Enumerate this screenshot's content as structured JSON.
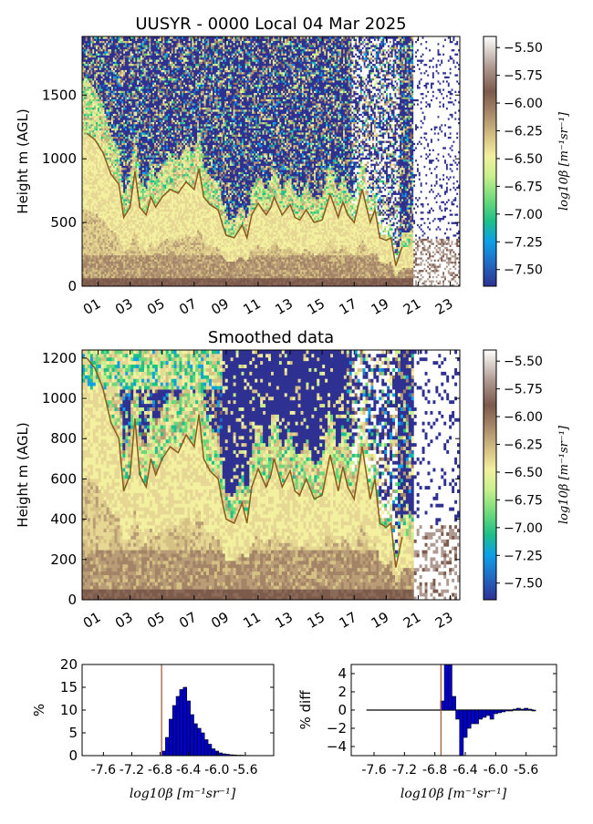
{
  "chart_data": [
    {
      "type": "heatmap",
      "title": "UUSYR - 0000 Local 04 Mar 2025",
      "xlabel": "",
      "ylabel": "Height m (AGL)",
      "xlim": [
        0,
        23.6
      ],
      "ylim": [
        0,
        1960
      ],
      "x_ticks": [
        "01",
        "03",
        "05",
        "07",
        "09",
        "11",
        "13",
        "15",
        "17",
        "19",
        "21",
        "23"
      ],
      "x_tick_values": [
        1,
        3,
        5,
        7,
        9,
        11,
        13,
        15,
        17,
        19,
        21,
        23
      ],
      "y_ticks": [
        0,
        500,
        1000,
        1500
      ],
      "colorbar": {
        "label": "log10β [m⁻¹sr⁻¹]",
        "ticks": [
          "-5.50",
          "-5.75",
          "-6.00",
          "-6.25",
          "-6.50",
          "-6.75",
          "-7.00",
          "-7.25",
          "-7.50"
        ],
        "range": [
          -7.65,
          -5.4
        ]
      },
      "line_series": {
        "name": "",
        "color": "#8b5a1e",
        "x": [
          0.3,
          0.8,
          1.3,
          1.8,
          2.3,
          2.6,
          3.0,
          3.3,
          3.6,
          4.0,
          4.3,
          4.6,
          5.0,
          5.5,
          6.0,
          6.5,
          7.0,
          7.3,
          7.6,
          8.0,
          8.5,
          8.8,
          9.0,
          9.5,
          10.0,
          10.3,
          10.6,
          11.0,
          11.5,
          11.8,
          12.0,
          12.5,
          13.0,
          13.3,
          13.6,
          14.0,
          14.5,
          15.0,
          15.5,
          16.0,
          16.3,
          16.6,
          17.0,
          17.5,
          18.0,
          18.3,
          18.6,
          19.0,
          19.3,
          19.6,
          20.0
        ],
        "y": [
          1200,
          1150,
          1050,
          880,
          800,
          540,
          620,
          900,
          620,
          560,
          700,
          620,
          700,
          760,
          730,
          820,
          760,
          920,
          700,
          640,
          600,
          470,
          400,
          380,
          480,
          380,
          560,
          650,
          560,
          620,
          700,
          560,
          640,
          540,
          520,
          600,
          500,
          520,
          720,
          540,
          660,
          560,
          500,
          760,
          500,
          600,
          380,
          360,
          380,
          160,
          310
        ]
      }
    },
    {
      "type": "heatmap",
      "title": "Smoothed data",
      "xlabel": "",
      "ylabel": "Height m (AGL)",
      "xlim": [
        0,
        23.6
      ],
      "ylim": [
        0,
        1240
      ],
      "x_ticks": [
        "01",
        "03",
        "05",
        "07",
        "09",
        "11",
        "13",
        "15",
        "17",
        "19",
        "21",
        "23"
      ],
      "x_tick_values": [
        1,
        3,
        5,
        7,
        9,
        11,
        13,
        15,
        17,
        19,
        21,
        23
      ],
      "y_ticks": [
        0,
        200,
        400,
        600,
        800,
        1000,
        1200
      ],
      "colorbar": {
        "label": "log10β [m⁻¹sr⁻¹]",
        "ticks": [
          "-5.50",
          "-5.75",
          "-6.00",
          "-6.25",
          "-6.50",
          "-6.75",
          "-7.00",
          "-7.25",
          "-7.50"
        ],
        "range": [
          -7.65,
          -5.4
        ]
      },
      "line_series": {
        "name": "",
        "color": "#8b5a1e",
        "x": [
          0.3,
          0.8,
          1.3,
          1.8,
          2.3,
          2.6,
          3.0,
          3.3,
          3.6,
          4.0,
          4.3,
          4.6,
          5.0,
          5.5,
          6.0,
          6.5,
          7.0,
          7.3,
          7.6,
          8.0,
          8.5,
          8.8,
          9.0,
          9.5,
          10.0,
          10.3,
          10.6,
          11.0,
          11.5,
          11.8,
          12.0,
          12.5,
          13.0,
          13.3,
          13.6,
          14.0,
          14.5,
          15.0,
          15.5,
          16.0,
          16.3,
          16.6,
          17.0,
          17.5,
          18.0,
          18.3,
          18.6,
          19.0,
          19.3,
          19.6,
          20.0
        ],
        "y": [
          1200,
          1150,
          1050,
          880,
          800,
          540,
          620,
          900,
          620,
          560,
          700,
          620,
          700,
          760,
          730,
          820,
          760,
          920,
          700,
          640,
          600,
          470,
          400,
          380,
          480,
          380,
          560,
          650,
          560,
          620,
          700,
          560,
          640,
          540,
          520,
          600,
          500,
          520,
          720,
          540,
          660,
          560,
          500,
          760,
          500,
          600,
          380,
          360,
          380,
          160,
          310
        ]
      }
    },
    {
      "type": "bar",
      "title": "",
      "xlabel": "log10β [m⁻¹sr⁻¹]",
      "ylabel": "%",
      "xlim": [
        -7.9,
        -5.2
      ],
      "ylim": [
        0,
        20
      ],
      "x_ticks": [
        "-7.6",
        "-7.2",
        "-6.8",
        "-6.4",
        "-6.0",
        "-5.6"
      ],
      "x_tick_values": [
        -7.6,
        -7.2,
        -6.8,
        -6.4,
        -6.0,
        -5.6
      ],
      "y_ticks": [
        0,
        5,
        10,
        15,
        20
      ],
      "bin_width": 0.05,
      "x": [
        -6.75,
        -6.7,
        -6.65,
        -6.6,
        -6.55,
        -6.5,
        -6.45,
        -6.4,
        -6.35,
        -6.3,
        -6.25,
        -6.2,
        -6.15,
        -6.1,
        -6.05,
        -6.0,
        -5.95,
        -5.9,
        -5.85,
        -5.8,
        -5.75,
        -5.7,
        -5.65
      ],
      "values": [
        1,
        4,
        8,
        11,
        13,
        14.5,
        15,
        12,
        9,
        7,
        6,
        5,
        3.5,
        2.5,
        1.5,
        1,
        0.6,
        0.4,
        0.3,
        0.2,
        0.15,
        0.1,
        0.1
      ],
      "vline": -6.78,
      "vline_color": "#a0522d",
      "bar_color": "#0000cc"
    },
    {
      "type": "bar",
      "title": "",
      "xlabel": "log10β [m⁻¹sr⁻¹]",
      "ylabel": "% diff",
      "xlim": [
        -7.9,
        -5.2
      ],
      "ylim": [
        -5,
        5
      ],
      "x_ticks": [
        "-7.6",
        "-7.2",
        "-6.8",
        "-6.4",
        "-6.0",
        "-5.6"
      ],
      "x_tick_values": [
        -7.6,
        -7.2,
        -6.8,
        -6.4,
        -6.0,
        -5.6
      ],
      "y_ticks": [
        -4,
        -2,
        0,
        2,
        4
      ],
      "bin_width": 0.05,
      "x": [
        -6.7,
        -6.65,
        -6.6,
        -6.55,
        -6.5,
        -6.45,
        -6.4,
        -6.35,
        -6.3,
        -6.25,
        -6.2,
        -6.15,
        -6.1,
        -6.05,
        -6.0,
        -5.95,
        -5.9,
        -5.85,
        -5.8,
        -5.75,
        -5.7,
        -5.65,
        -5.6,
        -5.55,
        -5.5
      ],
      "values": [
        1,
        5,
        5,
        1.5,
        -1,
        -5,
        -3,
        -2,
        -1.5,
        -1.5,
        -1,
        -0.8,
        -0.6,
        -1,
        -0.4,
        -0.3,
        -0.2,
        -0.1,
        -0.1,
        0.1,
        0.2,
        0.1,
        0.2,
        0.1,
        -0.1
      ],
      "vline": -6.72,
      "vline_color": "#a0522d",
      "bar_color": "#0000cc"
    }
  ]
}
